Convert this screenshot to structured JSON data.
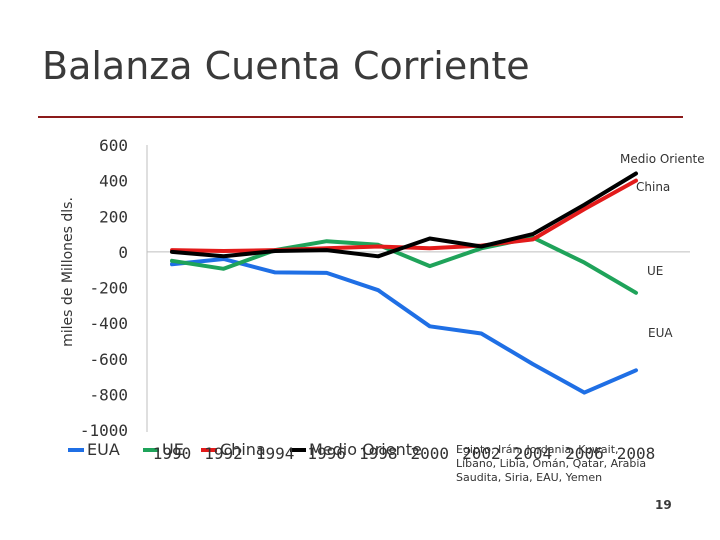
{
  "slide": {
    "title": "Balanza Cuenta Corriente",
    "page_number": "19",
    "footnote": "Egipto, Irán, Jordania, Kuwait, Líbano, Libia, Omán, Qatar, Arabia Saudita, Siria, EAU, Yemen",
    "accent_color": "#8b1a1a"
  },
  "chart_data": {
    "type": "line",
    "title": "",
    "xlabel": "",
    "ylabel": "miles de Millones dls.",
    "x": [
      1990,
      1992,
      1994,
      1996,
      1998,
      2000,
      2002,
      2004,
      2006,
      2008
    ],
    "x_ticks": [
      "1990",
      "1992",
      "1994",
      "1996",
      "1998",
      "2000",
      "2002",
      "2004",
      "2006",
      "2008"
    ],
    "ylim": [
      -1000,
      600
    ],
    "y_ticks": [
      600,
      400,
      200,
      0,
      -200,
      -400,
      -600,
      -800,
      -1000
    ],
    "grid": false,
    "legend_position": "bottom",
    "series": [
      {
        "name": "EUA",
        "color": "#1f6fe5",
        "end_label": "EUA",
        "values": [
          -70,
          -40,
          -115,
          -118,
          -215,
          -418,
          -458,
          -630,
          -790,
          -665
        ]
      },
      {
        "name": "UE",
        "color": "#1fa35a",
        "end_label": "UE",
        "values": [
          -50,
          -95,
          10,
          60,
          40,
          -80,
          20,
          80,
          -60,
          -230
        ]
      },
      {
        "name": "China",
        "color": "#e31b1b",
        "end_label": "China",
        "values": [
          10,
          5,
          10,
          20,
          30,
          20,
          35,
          70,
          240,
          400
        ]
      },
      {
        "name": "Medio Oriente",
        "color": "#000000",
        "end_label": "Medio Oriente",
        "values": [
          0,
          -25,
          5,
          10,
          -25,
          75,
          30,
          100,
          265,
          440
        ]
      }
    ]
  }
}
